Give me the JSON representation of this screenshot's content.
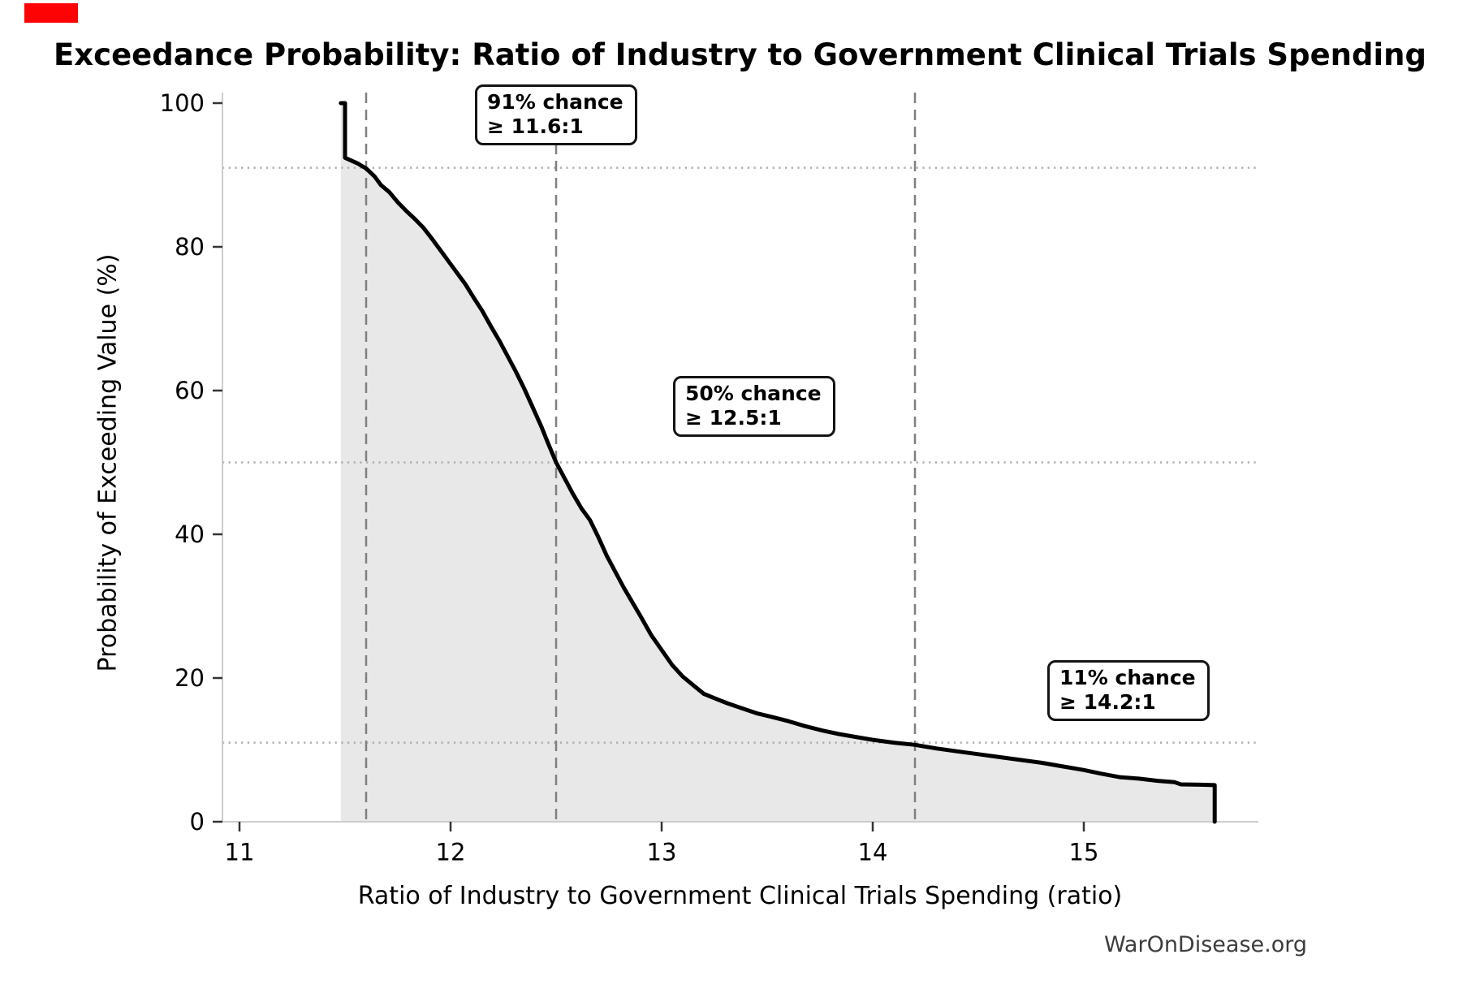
{
  "chart_data": {
    "type": "area",
    "title": "Exceedance Probability: Ratio of Industry to Government Clinical Trials Spending",
    "xlabel": "Ratio of Industry to Government Clinical Trials Spending (ratio)",
    "ylabel": "Probability of Exceeding Value (%)",
    "x_ticks": [
      11,
      12,
      13,
      14,
      15
    ],
    "y_ticks": [
      0,
      20,
      40,
      60,
      80,
      100
    ],
    "xlim": [
      10.92,
      15.83
    ],
    "ylim": [
      0,
      101.5
    ],
    "legend": "none",
    "series": [
      {
        "name": "exceedance_probability_curve",
        "type": "line-with-area",
        "color": "#000000",
        "fill": "#e8e8e8",
        "points": [
          [
            11.48,
            100
          ],
          [
            11.5,
            100
          ],
          [
            11.5,
            92.4
          ],
          [
            11.53,
            92.0
          ],
          [
            11.56,
            91.6
          ],
          [
            11.6,
            90.9
          ],
          [
            11.64,
            89.8
          ],
          [
            11.67,
            88.6
          ],
          [
            11.71,
            87.6
          ],
          [
            11.75,
            86.2
          ],
          [
            11.79,
            85.0
          ],
          [
            11.83,
            83.9
          ],
          [
            11.87,
            82.7
          ],
          [
            11.91,
            81.2
          ],
          [
            11.95,
            79.6
          ],
          [
            11.99,
            78.0
          ],
          [
            12.03,
            76.4
          ],
          [
            12.07,
            74.8
          ],
          [
            12.11,
            72.9
          ],
          [
            12.15,
            71.1
          ],
          [
            12.19,
            69.0
          ],
          [
            12.23,
            67.0
          ],
          [
            12.27,
            64.8
          ],
          [
            12.31,
            62.6
          ],
          [
            12.35,
            60.2
          ],
          [
            12.39,
            57.6
          ],
          [
            12.43,
            55.0
          ],
          [
            12.46,
            52.8
          ],
          [
            12.5,
            50.0
          ],
          [
            12.54,
            47.8
          ],
          [
            12.58,
            45.6
          ],
          [
            12.62,
            43.6
          ],
          [
            12.66,
            42.0
          ],
          [
            12.7,
            39.6
          ],
          [
            12.74,
            37.0
          ],
          [
            12.78,
            34.8
          ],
          [
            12.82,
            32.6
          ],
          [
            12.86,
            30.6
          ],
          [
            12.9,
            28.6
          ],
          [
            12.95,
            26.0
          ],
          [
            13.0,
            23.9
          ],
          [
            13.05,
            21.8
          ],
          [
            13.1,
            20.2
          ],
          [
            13.15,
            19.0
          ],
          [
            13.2,
            17.8
          ],
          [
            13.25,
            17.2
          ],
          [
            13.31,
            16.5
          ],
          [
            13.38,
            15.8
          ],
          [
            13.45,
            15.1
          ],
          [
            13.52,
            14.6
          ],
          [
            13.6,
            14.0
          ],
          [
            13.68,
            13.3
          ],
          [
            13.76,
            12.7
          ],
          [
            13.84,
            12.2
          ],
          [
            13.92,
            11.8
          ],
          [
            14.0,
            11.4
          ],
          [
            14.1,
            11.0
          ],
          [
            14.2,
            10.7
          ],
          [
            14.3,
            10.2
          ],
          [
            14.4,
            9.8
          ],
          [
            14.5,
            9.4
          ],
          [
            14.6,
            9.0
          ],
          [
            14.7,
            8.6
          ],
          [
            14.8,
            8.2
          ],
          [
            14.9,
            7.7
          ],
          [
            15.0,
            7.2
          ],
          [
            15.08,
            6.7
          ],
          [
            15.17,
            6.2
          ],
          [
            15.26,
            6.0
          ],
          [
            15.35,
            5.7
          ],
          [
            15.43,
            5.5
          ],
          [
            15.46,
            5.2
          ],
          [
            15.55,
            5.15
          ],
          [
            15.62,
            5.1
          ],
          [
            15.62,
            0
          ]
        ]
      }
    ],
    "reference_lines": {
      "vertical_dashed_x": [
        11.6,
        12.5,
        14.2
      ],
      "horizontal_dotted_y": [
        91,
        50,
        11
      ]
    },
    "annotations": [
      {
        "line1": "91% chance",
        "line2": "≥ 11.6:1",
        "at_x": 11.6,
        "at_y": 91
      },
      {
        "line1": "50% chance",
        "line2": "≥ 12.5:1",
        "at_x": 12.5,
        "at_y": 50
      },
      {
        "line1": "11% chance",
        "line2": "≥ 14.2:1",
        "at_x": 14.2,
        "at_y": 11
      }
    ],
    "watermark": "WarOnDisease.org",
    "colors": {
      "curve": "#000000",
      "area_fill": "#e8e8e8",
      "dashed_line": "#7f7f7f",
      "dotted_line": "#adadad",
      "spine": "#cccccc",
      "tick_mark": "#333333",
      "text": "#000000",
      "watermark": "#3d3d3d",
      "marker_red": "#fe0303"
    }
  }
}
